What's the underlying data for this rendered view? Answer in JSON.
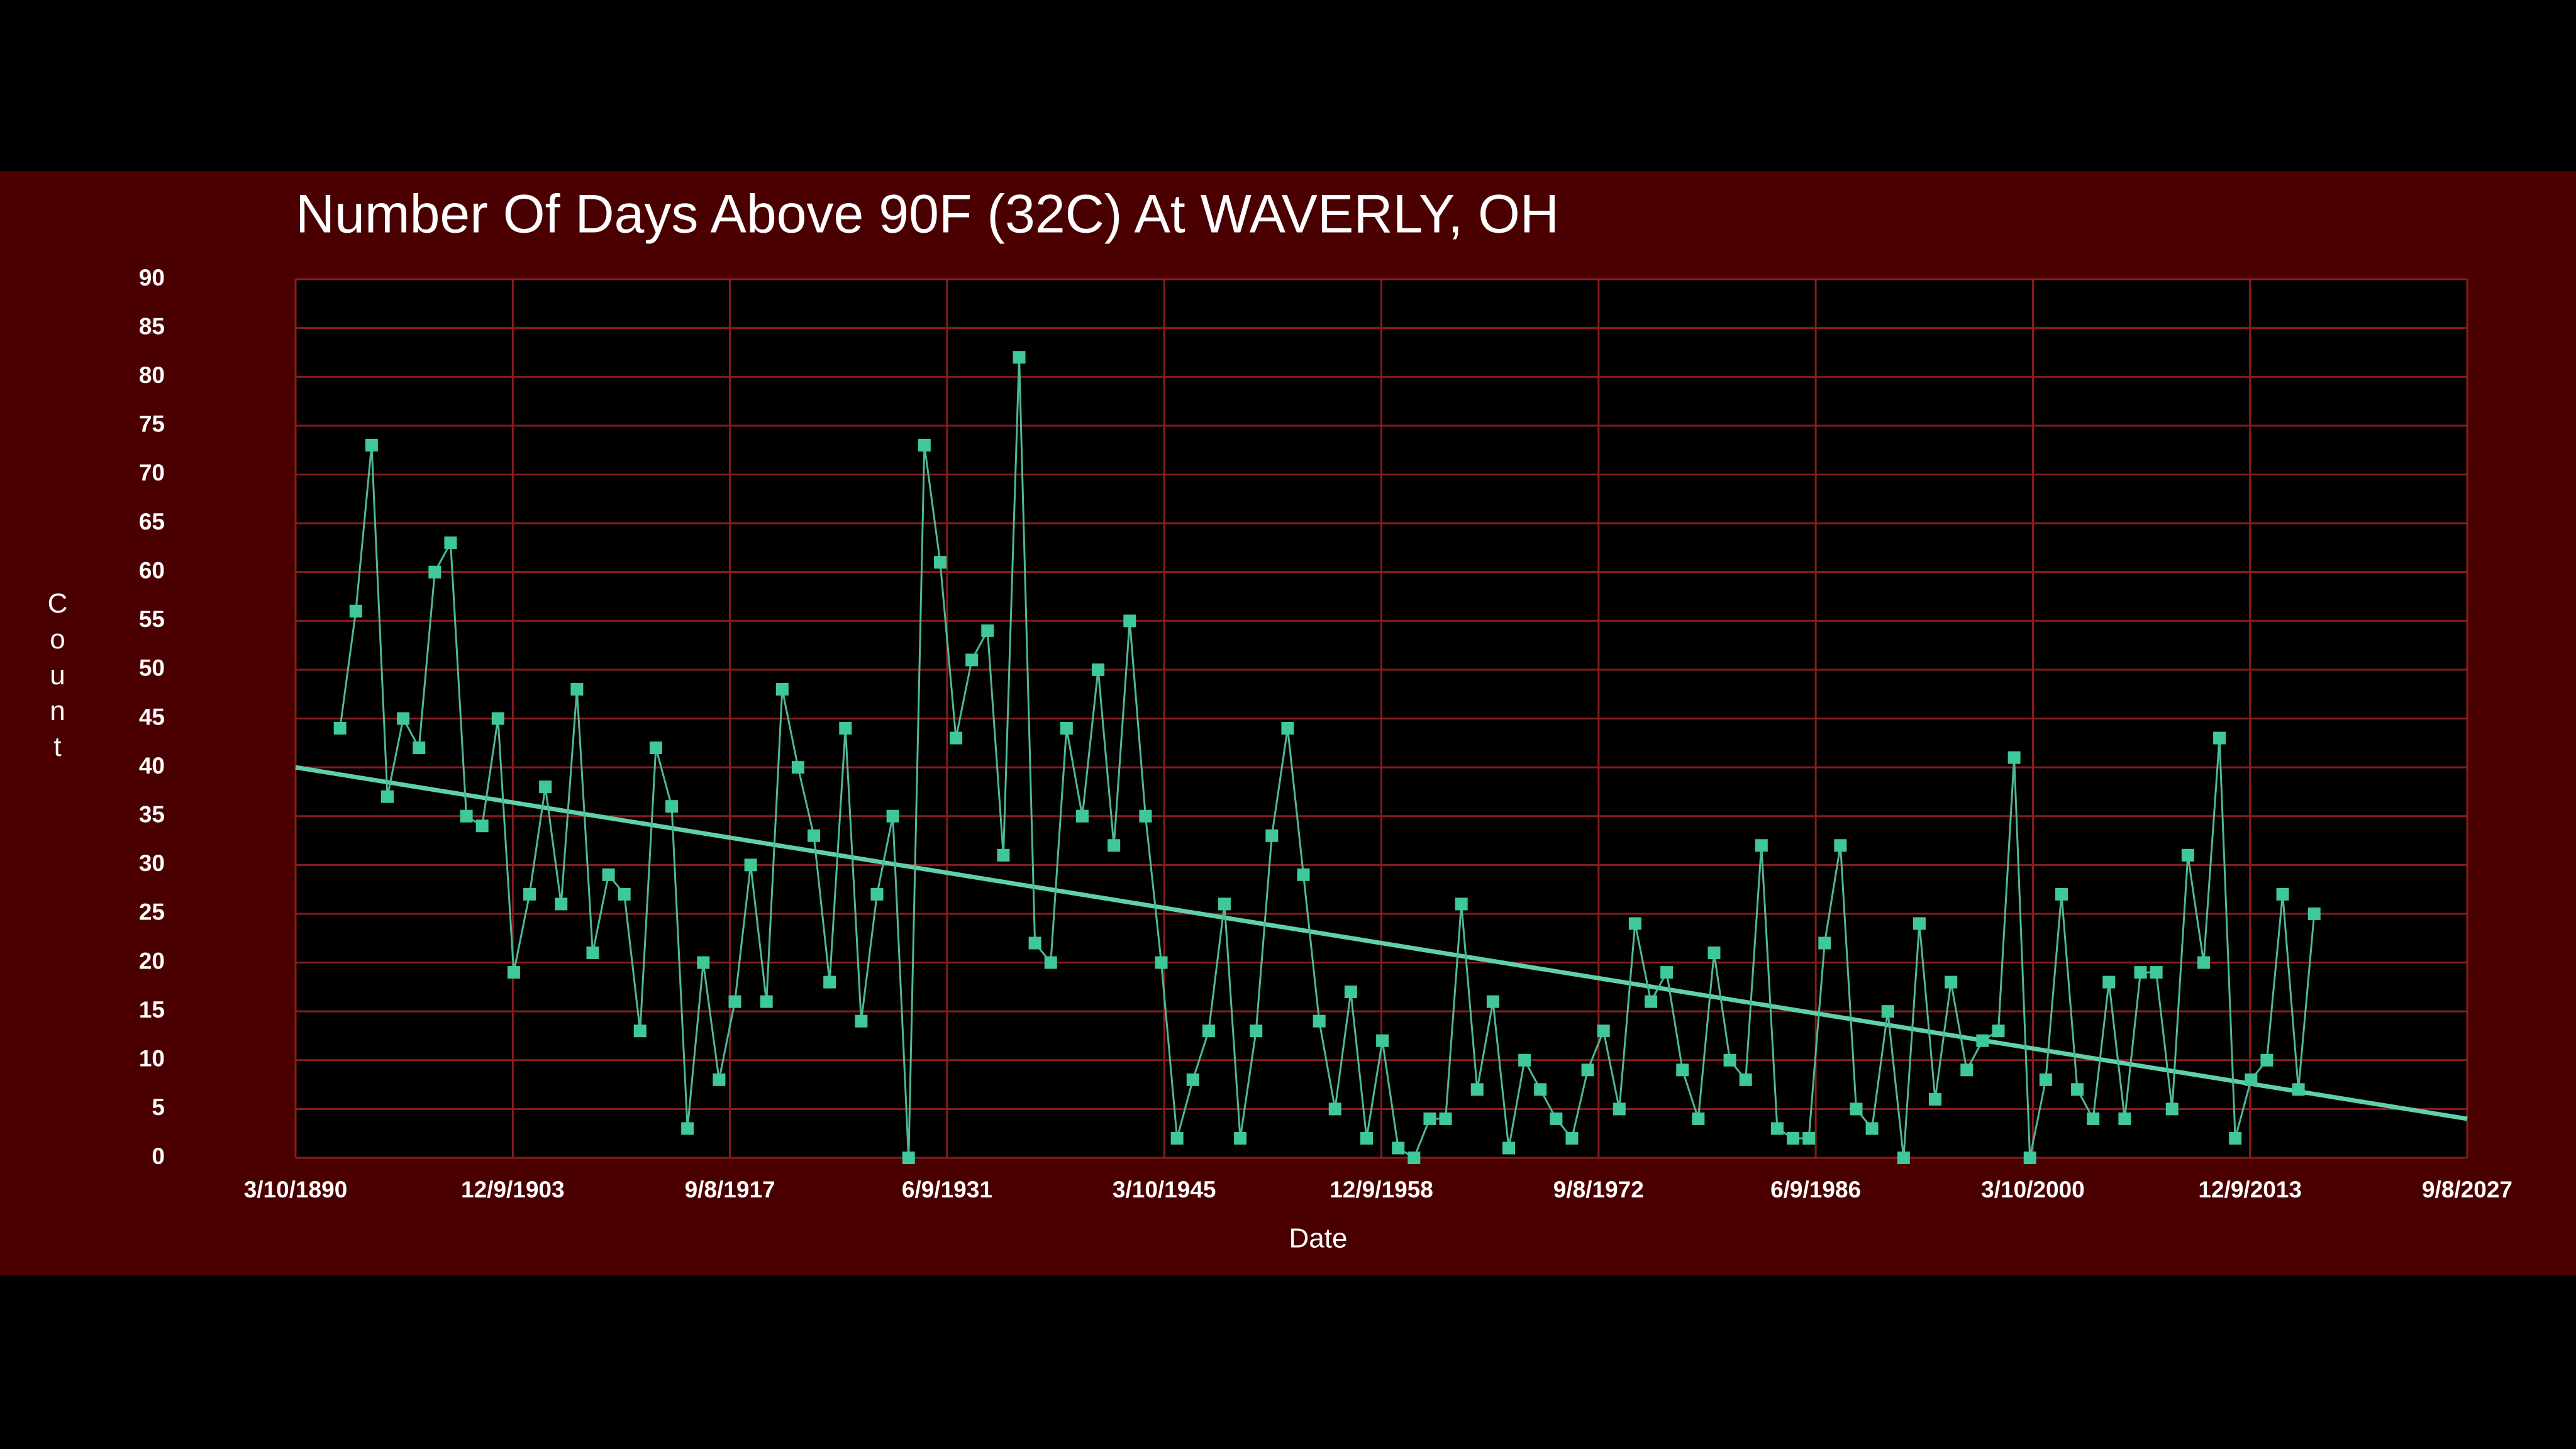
{
  "chart_data": {
    "type": "line",
    "title": "Number Of Days Above 90F (32C)  At  WAVERLY, OH",
    "x_label": "Date",
    "y_label": "Count",
    "x": [
      1893,
      1894,
      1895,
      1896,
      1897,
      1898,
      1899,
      1900,
      1901,
      1902,
      1903,
      1904,
      1905,
      1906,
      1907,
      1908,
      1909,
      1910,
      1911,
      1912,
      1913,
      1914,
      1915,
      1916,
      1917,
      1918,
      1919,
      1920,
      1921,
      1922,
      1923,
      1924,
      1925,
      1926,
      1927,
      1928,
      1929,
      1930,
      1931,
      1932,
      1933,
      1934,
      1935,
      1936,
      1937,
      1938,
      1939,
      1940,
      1941,
      1942,
      1943,
      1944,
      1945,
      1946,
      1947,
      1948,
      1949,
      1950,
      1951,
      1952,
      1953,
      1954,
      1955,
      1956,
      1957,
      1958,
      1959,
      1960,
      1961,
      1962,
      1963,
      1964,
      1965,
      1966,
      1967,
      1968,
      1969,
      1970,
      1971,
      1972,
      1973,
      1974,
      1975,
      1976,
      1977,
      1978,
      1979,
      1980,
      1981,
      1982,
      1983,
      1984,
      1985,
      1986,
      1987,
      1988,
      1989,
      1990,
      1991,
      1992,
      1993,
      1994,
      1995,
      1996,
      1997,
      1998,
      1999,
      2000,
      2001,
      2002,
      2003,
      2004,
      2005,
      2006,
      2007,
      2008,
      2009,
      2010,
      2011,
      2012,
      2013,
      2014,
      2015,
      2016,
      2017,
      2018
    ],
    "series": [
      {
        "name": "Count",
        "color": "#3fc89a",
        "line_color": "#4fb898",
        "values": [
          44,
          56,
          73,
          37,
          45,
          42,
          60,
          63,
          35,
          34,
          45,
          19,
          27,
          38,
          26,
          48,
          21,
          29,
          27,
          13,
          42,
          36,
          3,
          20,
          8,
          16,
          30,
          16,
          48,
          40,
          33,
          18,
          44,
          14,
          27,
          35,
          0,
          73,
          61,
          43,
          51,
          54,
          31,
          82,
          22,
          20,
          44,
          35,
          50,
          32,
          55,
          35,
          20,
          2,
          8,
          13,
          26,
          2,
          13,
          33,
          44,
          29,
          14,
          5,
          17,
          2,
          12,
          1,
          0,
          4,
          4,
          26,
          7,
          16,
          1,
          10,
          7,
          4,
          2,
          9,
          13,
          5,
          24,
          16,
          19,
          9,
          4,
          21,
          10,
          8,
          32,
          3,
          2,
          2,
          22,
          32,
          5,
          3,
          15,
          0,
          24,
          6,
          18,
          9,
          12,
          13,
          41,
          0,
          8,
          27,
          7,
          4,
          18,
          4,
          19,
          19,
          5,
          31,
          20,
          43,
          2,
          8,
          10,
          27,
          7,
          25
        ]
      }
    ],
    "trendline": {
      "x": [
        1890.186,
        2027.686
      ],
      "values": [
        40,
        4
      ],
      "color": "#5fd0a8"
    },
    "xlim": [
      1890.186,
      2027.686
    ],
    "xticks": [
      {
        "value": 1890.186,
        "label": "3/10/1890"
      },
      {
        "value": 1903.937,
        "label": "12/9/1903"
      },
      {
        "value": 1917.686,
        "label": "9/8/1917"
      },
      {
        "value": 1931.436,
        "label": "6/9/1931"
      },
      {
        "value": 1945.186,
        "label": "3/10/1945"
      },
      {
        "value": 1958.937,
        "label": "12/9/1958"
      },
      {
        "value": 1972.686,
        "label": "9/8/1972"
      },
      {
        "value": 1986.436,
        "label": "6/9/1986"
      },
      {
        "value": 2000.188,
        "label": "3/10/2000"
      },
      {
        "value": 2013.937,
        "label": "12/9/2013"
      },
      {
        "value": 2027.686,
        "label": "9/8/2027"
      }
    ],
    "ylim": [
      0,
      90
    ],
    "yticks": [
      0,
      5,
      10,
      15,
      20,
      25,
      30,
      35,
      40,
      45,
      50,
      55,
      60,
      65,
      70,
      75,
      80,
      85,
      90
    ],
    "grid": true,
    "grid_color": "#8a1c1c"
  }
}
